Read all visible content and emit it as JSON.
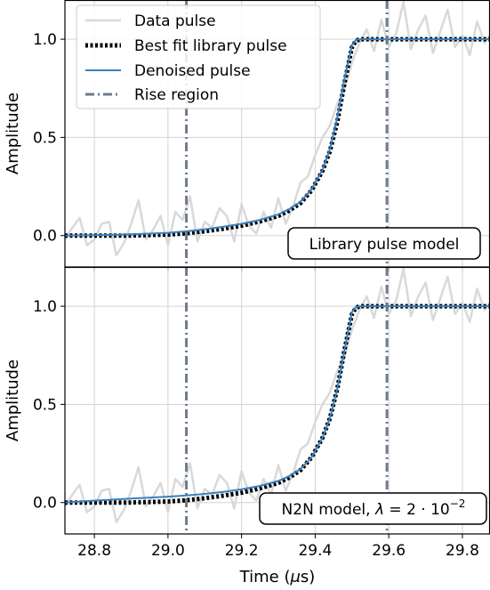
{
  "chart_data": [
    {
      "type": "line",
      "annotation": "Library pulse model",
      "ylabel": "Amplitude",
      "xlim": [
        28.72,
        29.875
      ],
      "ylim": [
        -0.16,
        1.2
      ],
      "yticks": [
        0.0,
        0.5,
        1.0
      ],
      "ytick_labels": [
        "0.0",
        "0.5",
        "1.0"
      ],
      "grid": true,
      "legend": {
        "placement": "top-left",
        "entries": [
          "Data pulse",
          "Best fit library pulse",
          "Denoised pulse",
          "Rise region"
        ]
      },
      "rise_region": [
        29.05,
        29.595
      ],
      "series": [
        {
          "name": "Data pulse",
          "color": "#d9d9d9",
          "x": [
            28.72,
            28.74,
            28.76,
            28.78,
            28.8,
            28.82,
            28.84,
            28.86,
            28.88,
            28.9,
            28.92,
            28.94,
            28.96,
            28.98,
            29.0,
            29.02,
            29.04,
            29.06,
            29.08,
            29.1,
            29.12,
            29.14,
            29.16,
            29.18,
            29.2,
            29.22,
            29.24,
            29.26,
            29.28,
            29.3,
            29.32,
            29.34,
            29.36,
            29.38,
            29.4,
            29.42,
            29.44,
            29.46,
            29.48,
            29.5,
            29.52,
            29.54,
            29.56,
            29.58,
            29.6,
            29.62,
            29.64,
            29.66,
            29.68,
            29.7,
            29.72,
            29.74,
            29.76,
            29.78,
            29.8,
            29.82,
            29.84,
            29.86,
            29.875
          ],
          "values": [
            -0.02,
            0.04,
            0.09,
            -0.05,
            -0.02,
            0.06,
            0.07,
            -0.1,
            -0.04,
            0.06,
            0.18,
            -0.02,
            0.03,
            0.1,
            -0.05,
            0.12,
            0.08,
            0.2,
            -0.03,
            0.07,
            0.04,
            0.14,
            0.1,
            -0.03,
            0.16,
            0.05,
            0.01,
            0.12,
            0.04,
            0.19,
            0.06,
            0.15,
            0.27,
            0.3,
            0.41,
            0.5,
            0.56,
            0.67,
            0.75,
            0.88,
            0.98,
            1.05,
            0.94,
            1.1,
            0.96,
            1.03,
            1.19,
            0.95,
            1.05,
            1.12,
            0.93,
            1.04,
            1.15,
            0.96,
            1.02,
            0.92,
            1.09,
            0.98,
            1.02
          ]
        },
        {
          "name": "Best fit library pulse",
          "color": "#000000",
          "x": [
            28.72,
            28.8,
            28.9,
            29.0,
            29.05,
            29.1,
            29.15,
            29.2,
            29.25,
            29.3,
            29.33,
            29.36,
            29.39,
            29.42,
            29.44,
            29.46,
            29.48,
            29.5,
            29.51,
            29.52,
            29.6,
            29.875
          ],
          "values": [
            0.0,
            0.0,
            0.0,
            0.005,
            0.012,
            0.022,
            0.035,
            0.05,
            0.072,
            0.1,
            0.128,
            0.165,
            0.23,
            0.33,
            0.43,
            0.58,
            0.78,
            0.96,
            0.99,
            1.0,
            1.0,
            1.0
          ]
        },
        {
          "name": "Denoised pulse",
          "color": "#3a80c0",
          "x": [
            28.72,
            28.8,
            28.9,
            29.0,
            29.05,
            29.1,
            29.15,
            29.2,
            29.25,
            29.3,
            29.33,
            29.36,
            29.39,
            29.42,
            29.44,
            29.46,
            29.48,
            29.5,
            29.51,
            29.52,
            29.6,
            29.875
          ],
          "values": [
            0.0,
            0.002,
            0.006,
            0.014,
            0.022,
            0.032,
            0.045,
            0.06,
            0.08,
            0.108,
            0.135,
            0.172,
            0.235,
            0.335,
            0.44,
            0.6,
            0.8,
            0.97,
            0.995,
            1.0,
            1.0,
            1.0
          ]
        }
      ]
    },
    {
      "type": "line",
      "annotation": "N2N model, λ = 2 · 10⁻²",
      "annotation_prefix": "N2N model, ",
      "annotation_lambda": "λ",
      "annotation_eq": " = 2 · 10",
      "annotation_exp": "−2",
      "ylabel": "Amplitude",
      "xlabel": "Time (μs)",
      "xlabel_prefix": "Time (",
      "xlabel_mu": "μ",
      "xlabel_suffix": "s)",
      "xlim": [
        28.72,
        29.875
      ],
      "ylim": [
        -0.16,
        1.2
      ],
      "xticks": [
        28.8,
        29.0,
        29.2,
        29.4,
        29.6,
        29.8
      ],
      "xtick_labels": [
        "28.8",
        "29.0",
        "29.2",
        "29.4",
        "29.6",
        "29.8"
      ],
      "yticks": [
        0.0,
        0.5,
        1.0
      ],
      "ytick_labels": [
        "0.0",
        "0.5",
        "1.0"
      ],
      "grid": true,
      "rise_region": [
        29.05,
        29.595
      ],
      "series": [
        {
          "name": "Data pulse",
          "color": "#d9d9d9",
          "x": [
            28.72,
            28.74,
            28.76,
            28.78,
            28.8,
            28.82,
            28.84,
            28.86,
            28.88,
            28.9,
            28.92,
            28.94,
            28.96,
            28.98,
            29.0,
            29.02,
            29.04,
            29.06,
            29.08,
            29.1,
            29.12,
            29.14,
            29.16,
            29.18,
            29.2,
            29.22,
            29.24,
            29.26,
            29.28,
            29.3,
            29.32,
            29.34,
            29.36,
            29.38,
            29.4,
            29.42,
            29.44,
            29.46,
            29.48,
            29.5,
            29.52,
            29.54,
            29.56,
            29.58,
            29.6,
            29.62,
            29.64,
            29.66,
            29.68,
            29.7,
            29.72,
            29.74,
            29.76,
            29.78,
            29.8,
            29.82,
            29.84,
            29.86,
            29.875
          ],
          "values": [
            -0.02,
            0.04,
            0.09,
            -0.05,
            -0.02,
            0.06,
            0.07,
            -0.1,
            -0.04,
            0.06,
            0.18,
            -0.02,
            0.03,
            0.1,
            -0.05,
            0.12,
            0.08,
            0.2,
            -0.03,
            0.07,
            0.04,
            0.14,
            0.1,
            -0.03,
            0.16,
            0.05,
            0.01,
            0.12,
            0.04,
            0.19,
            0.06,
            0.15,
            0.27,
            0.3,
            0.41,
            0.5,
            0.56,
            0.67,
            0.75,
            0.88,
            0.98,
            1.05,
            0.94,
            1.1,
            0.96,
            1.03,
            1.19,
            0.95,
            1.05,
            1.12,
            0.93,
            1.04,
            1.15,
            0.96,
            1.02,
            0.92,
            1.09,
            0.98,
            1.02
          ]
        },
        {
          "name": "Best fit library pulse",
          "color": "#000000",
          "x": [
            28.72,
            28.8,
            28.9,
            29.0,
            29.05,
            29.1,
            29.15,
            29.2,
            29.25,
            29.3,
            29.33,
            29.36,
            29.39,
            29.42,
            29.44,
            29.46,
            29.48,
            29.5,
            29.51,
            29.52,
            29.6,
            29.875
          ],
          "values": [
            0.0,
            0.0,
            0.0,
            0.005,
            0.012,
            0.022,
            0.035,
            0.05,
            0.072,
            0.1,
            0.128,
            0.165,
            0.23,
            0.33,
            0.43,
            0.58,
            0.78,
            0.96,
            0.99,
            1.0,
            1.0,
            1.0
          ]
        },
        {
          "name": "Denoised pulse",
          "color": "#3a80c0",
          "x": [
            28.72,
            28.8,
            28.9,
            29.0,
            29.05,
            29.1,
            29.15,
            29.2,
            29.25,
            29.3,
            29.33,
            29.36,
            29.39,
            29.42,
            29.44,
            29.46,
            29.48,
            29.5,
            29.51,
            29.52,
            29.6,
            29.875
          ],
          "values": [
            0.0,
            0.01,
            0.02,
            0.03,
            0.036,
            0.044,
            0.054,
            0.067,
            0.085,
            0.11,
            0.135,
            0.17,
            0.23,
            0.33,
            0.43,
            0.58,
            0.78,
            0.97,
            0.995,
            1.0,
            1.0,
            1.0
          ]
        }
      ]
    }
  ],
  "colors": {
    "rise_region": "#6d7b8d",
    "grid": "#d3d3d3",
    "axes": "#000000"
  }
}
